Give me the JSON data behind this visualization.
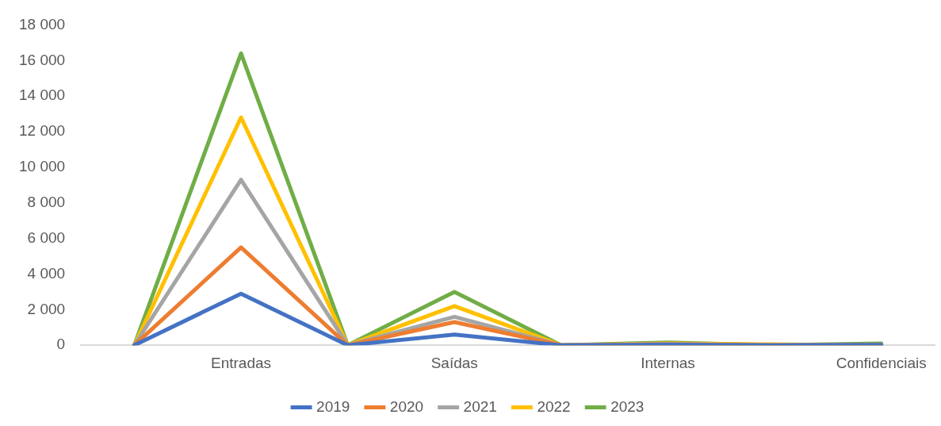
{
  "chart_data": {
    "type": "line",
    "categories": [
      null,
      "Entradas",
      null,
      "Saídas",
      null,
      "Internas",
      null,
      "Confidenciais"
    ],
    "series": [
      {
        "name": "2019",
        "color": "#4472c4",
        "values": [
          0,
          2900,
          0,
          600,
          0,
          30,
          0,
          20
        ]
      },
      {
        "name": "2020",
        "color": "#ed7d31",
        "values": [
          0,
          5500,
          0,
          1300,
          0,
          50,
          0,
          20
        ]
      },
      {
        "name": "2021",
        "color": "#a5a5a5",
        "values": [
          0,
          9300,
          0,
          1600,
          0,
          80,
          0,
          20
        ]
      },
      {
        "name": "2022",
        "color": "#ffc000",
        "values": [
          0,
          12800,
          0,
          2200,
          0,
          100,
          null,
          0
        ]
      },
      {
        "name": "2023",
        "color": "#70ad47",
        "values": [
          0,
          16400,
          0,
          3000,
          0,
          150,
          0,
          100
        ]
      }
    ],
    "ylim": [
      0,
      18000
    ],
    "yticks": [
      0,
      {
        "value": 2000,
        "label": "2 000"
      },
      {
        "value": 4000,
        "label": "4 000"
      },
      {
        "value": 6000,
        "label": "6 000"
      },
      {
        "value": 8000,
        "label": "8 000"
      },
      {
        "value": 10000,
        "label": "10 000"
      },
      {
        "value": 12000,
        "label": "12 000"
      },
      {
        "value": 14000,
        "label": "14 000"
      },
      {
        "value": 16000,
        "label": "16 000"
      },
      {
        "value": 18000,
        "label": "18 000"
      }
    ],
    "grid": false,
    "legend": "bottom",
    "marker": "none",
    "line_style": "solid"
  }
}
